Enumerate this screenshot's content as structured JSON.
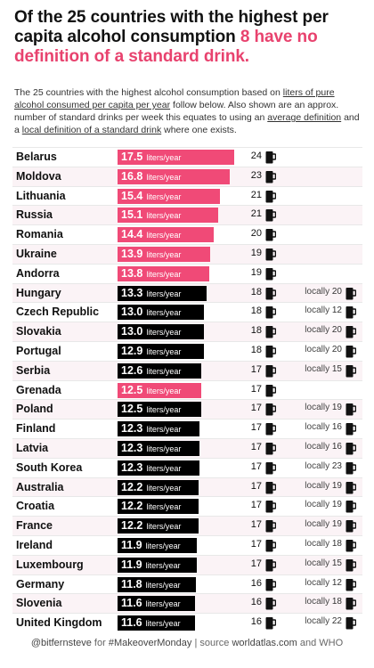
{
  "header": {
    "title_part1": "Of the 25 countries with the highest per capita alcohol consumption ",
    "title_part2": "8 have no definition of a standard drink.",
    "desc_part1": "The 25 countries with the highest alcohol consumption based on ",
    "desc_link1": "liters of pure alcohol consumed per capita per year",
    "desc_part2": " follow below. Also shown are an approx. number of standard drinks per week this equates to using an ",
    "desc_link2": "average definition",
    "desc_part3": " and a ",
    "desc_link3": "local definition of a standard drink",
    "desc_part4": " where one exists."
  },
  "footer": {
    "handle": "@bitfernsteve",
    "for_text": " for ",
    "hashtag": "#MakeoverMonday",
    "source_text": " | source ",
    "source": "worldatlas.com",
    "and_text": " and WHO"
  },
  "colors": {
    "no_definition": "#f04a77",
    "has_definition": "#000000",
    "accent": "#e8426e"
  },
  "icons": {
    "drink": "beer-mug-icon"
  },
  "chart_data": {
    "type": "bar",
    "orientation": "horizontal",
    "unit": "liters/year",
    "local_prefix": "locally",
    "xlim": [
      0,
      17.5
    ],
    "rows": [
      {
        "country": "Belarus",
        "liters": 17.5,
        "drinks": 24,
        "local": null,
        "has_definition": false
      },
      {
        "country": "Moldova",
        "liters": 16.8,
        "drinks": 23,
        "local": null,
        "has_definition": false
      },
      {
        "country": "Lithuania",
        "liters": 15.4,
        "drinks": 21,
        "local": null,
        "has_definition": false
      },
      {
        "country": "Russia",
        "liters": 15.1,
        "drinks": 21,
        "local": null,
        "has_definition": false
      },
      {
        "country": "Romania",
        "liters": 14.4,
        "drinks": 20,
        "local": null,
        "has_definition": false
      },
      {
        "country": "Ukraine",
        "liters": 13.9,
        "drinks": 19,
        "local": null,
        "has_definition": false
      },
      {
        "country": "Andorra",
        "liters": 13.8,
        "drinks": 19,
        "local": null,
        "has_definition": false
      },
      {
        "country": "Hungary",
        "liters": 13.3,
        "drinks": 18,
        "local": 20,
        "has_definition": true
      },
      {
        "country": "Czech Republic",
        "liters": 13.0,
        "drinks": 18,
        "local": 12,
        "has_definition": true
      },
      {
        "country": "Slovakia",
        "liters": 13.0,
        "drinks": 18,
        "local": 20,
        "has_definition": true
      },
      {
        "country": "Portugal",
        "liters": 12.9,
        "drinks": 18,
        "local": 20,
        "has_definition": true
      },
      {
        "country": "Serbia",
        "liters": 12.6,
        "drinks": 17,
        "local": 15,
        "has_definition": true
      },
      {
        "country": "Grenada",
        "liters": 12.5,
        "drinks": 17,
        "local": null,
        "has_definition": false
      },
      {
        "country": "Poland",
        "liters": 12.5,
        "drinks": 17,
        "local": 19,
        "has_definition": true
      },
      {
        "country": "Finland",
        "liters": 12.3,
        "drinks": 17,
        "local": 16,
        "has_definition": true
      },
      {
        "country": "Latvia",
        "liters": 12.3,
        "drinks": 17,
        "local": 16,
        "has_definition": true
      },
      {
        "country": "South Korea",
        "liters": 12.3,
        "drinks": 17,
        "local": 23,
        "has_definition": true
      },
      {
        "country": "Australia",
        "liters": 12.2,
        "drinks": 17,
        "local": 19,
        "has_definition": true
      },
      {
        "country": "Croatia",
        "liters": 12.2,
        "drinks": 17,
        "local": 19,
        "has_definition": true
      },
      {
        "country": "France",
        "liters": 12.2,
        "drinks": 17,
        "local": 19,
        "has_definition": true
      },
      {
        "country": "Ireland",
        "liters": 11.9,
        "drinks": 17,
        "local": 18,
        "has_definition": true
      },
      {
        "country": "Luxembourg",
        "liters": 11.9,
        "drinks": 17,
        "local": 15,
        "has_definition": true
      },
      {
        "country": "Germany",
        "liters": 11.8,
        "drinks": 16,
        "local": 12,
        "has_definition": true
      },
      {
        "country": "Slovenia",
        "liters": 11.6,
        "drinks": 16,
        "local": 18,
        "has_definition": true
      },
      {
        "country": "United Kingdom",
        "liters": 11.6,
        "drinks": 16,
        "local": 22,
        "has_definition": true
      }
    ]
  }
}
